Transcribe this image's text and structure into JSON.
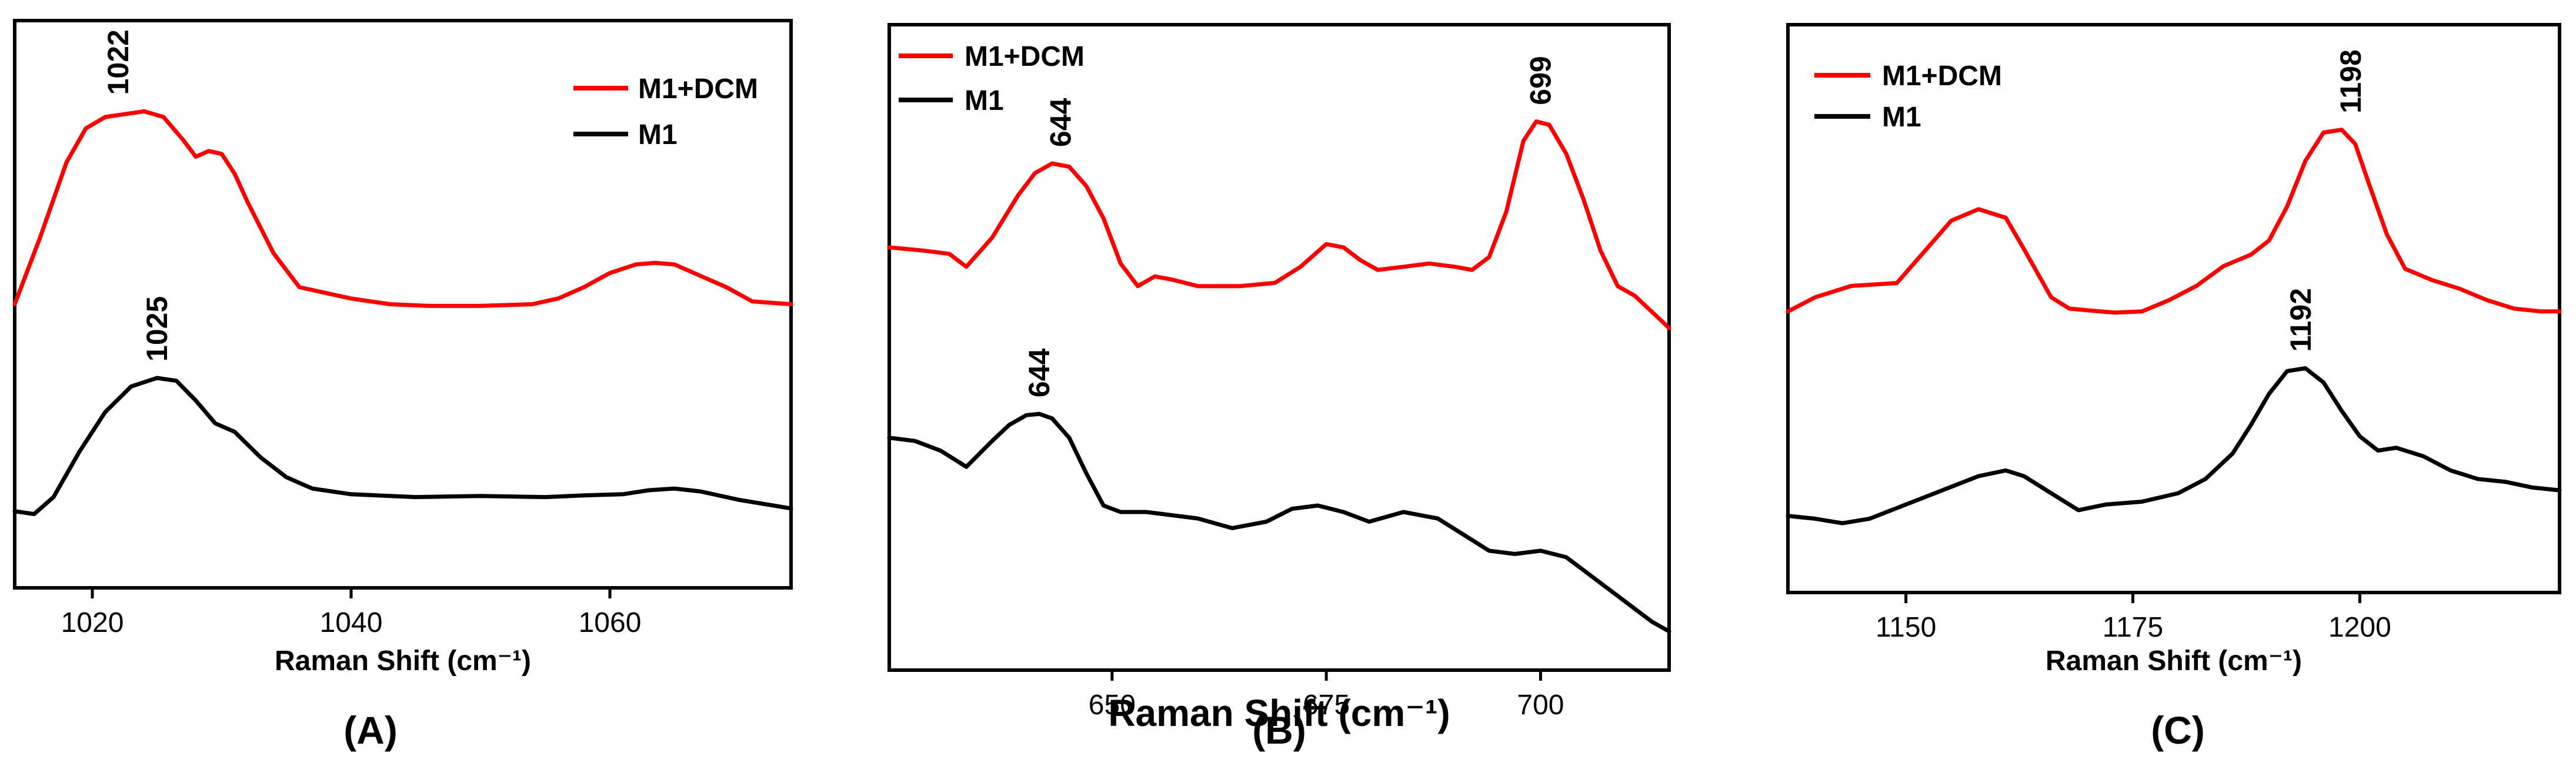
{
  "chart_data": [
    {
      "type": "line",
      "panel_label": "(A)",
      "xlabel": "Raman Shift (cm⁻¹)",
      "xlim": [
        1014,
        1074
      ],
      "ylim": [
        0,
        10
      ],
      "yticks_shown": false,
      "xticks": [
        1020,
        1040,
        1060
      ],
      "legend": {
        "placement": "top-right",
        "entries": [
          {
            "name": "M1+DCM",
            "color": "#ff0000"
          },
          {
            "name": "M1",
            "color": "#000000"
          }
        ]
      },
      "series": [
        {
          "name": "M1+DCM",
          "color": "#ff0000",
          "x": [
            1014,
            1016,
            1018,
            1019.5,
            1021,
            1022.5,
            1024,
            1025.5,
            1027,
            1028,
            1029,
            1030,
            1031,
            1032,
            1034,
            1036,
            1038,
            1040,
            1043,
            1046,
            1050,
            1054,
            1056,
            1058,
            1060,
            1062,
            1063.5,
            1065,
            1067,
            1069,
            1071,
            1074
          ],
          "y": [
            5.0,
            6.2,
            7.5,
            8.1,
            8.3,
            8.35,
            8.4,
            8.3,
            7.9,
            7.6,
            7.7,
            7.65,
            7.3,
            6.8,
            5.9,
            5.3,
            5.2,
            5.1,
            5.0,
            4.97,
            4.97,
            5.0,
            5.1,
            5.3,
            5.55,
            5.7,
            5.73,
            5.7,
            5.5,
            5.3,
            5.05,
            5.0
          ]
        },
        {
          "name": "M1",
          "color": "#000000",
          "x": [
            1014,
            1015.5,
            1017,
            1019,
            1021,
            1023,
            1025,
            1026.5,
            1028,
            1029.5,
            1031,
            1033,
            1035,
            1037,
            1040,
            1045,
            1050,
            1055,
            1058,
            1061,
            1063,
            1065,
            1067,
            1070,
            1074
          ],
          "y": [
            1.35,
            1.3,
            1.6,
            2.4,
            3.1,
            3.55,
            3.7,
            3.65,
            3.3,
            2.9,
            2.75,
            2.3,
            1.95,
            1.75,
            1.65,
            1.6,
            1.62,
            1.6,
            1.63,
            1.65,
            1.72,
            1.75,
            1.7,
            1.55,
            1.4
          ]
        }
      ],
      "annotations": [
        {
          "text": "1022",
          "x": 1022,
          "y": 8.4
        },
        {
          "text": "1025",
          "x": 1025,
          "y": 3.7
        }
      ]
    },
    {
      "type": "line",
      "panel_label": "(B)",
      "xlabel": "Raman Shift (cm⁻¹)",
      "xlim": [
        624,
        715
      ],
      "ylim": [
        0,
        10
      ],
      "yticks_shown": false,
      "xticks": [
        650,
        675,
        700
      ],
      "legend": {
        "placement": "top-left",
        "entries": [
          {
            "name": "M1+DCM",
            "color": "#ff0000"
          },
          {
            "name": "M1",
            "color": "#000000"
          }
        ]
      },
      "series": [
        {
          "name": "M1+DCM",
          "color": "#ff0000",
          "x": [
            624,
            628,
            631,
            633,
            636,
            639,
            641,
            643,
            645,
            647,
            649,
            651,
            653,
            655,
            657,
            660,
            665,
            669,
            672,
            675,
            677,
            679,
            681,
            684,
            687,
            690,
            692,
            694,
            696,
            698,
            699.5,
            701,
            703,
            705,
            707,
            709,
            711,
            713,
            715
          ],
          "y": [
            6.55,
            6.5,
            6.45,
            6.25,
            6.7,
            7.35,
            7.7,
            7.85,
            7.8,
            7.5,
            7.0,
            6.3,
            5.95,
            6.1,
            6.05,
            5.95,
            5.95,
            6.0,
            6.25,
            6.6,
            6.55,
            6.35,
            6.2,
            6.25,
            6.3,
            6.25,
            6.2,
            6.4,
            7.1,
            8.2,
            8.5,
            8.45,
            8.0,
            7.3,
            6.5,
            5.95,
            5.8,
            5.55,
            5.3
          ]
        },
        {
          "name": "M1",
          "color": "#000000",
          "x": [
            624,
            627,
            630,
            633,
            636,
            638,
            640,
            641.5,
            643,
            645,
            647,
            649,
            651,
            654,
            657,
            660,
            664,
            668,
            671,
            674,
            677,
            680,
            684,
            688,
            691,
            694,
            697,
            700,
            703,
            705,
            707,
            709,
            711,
            713,
            715
          ],
          "y": [
            3.6,
            3.55,
            3.4,
            3.15,
            3.55,
            3.8,
            3.95,
            3.97,
            3.9,
            3.6,
            3.05,
            2.55,
            2.45,
            2.45,
            2.4,
            2.35,
            2.2,
            2.3,
            2.5,
            2.55,
            2.45,
            2.3,
            2.45,
            2.35,
            2.1,
            1.85,
            1.8,
            1.85,
            1.75,
            1.55,
            1.35,
            1.15,
            0.95,
            0.75,
            0.6
          ]
        }
      ],
      "annotations": [
        {
          "text": "644",
          "x": 644,
          "y": 7.85
        },
        {
          "text": "699",
          "x": 700,
          "y": 8.5
        },
        {
          "text": "644",
          "x": 641.5,
          "y": 3.97
        }
      ]
    },
    {
      "type": "line",
      "panel_label": "(C)",
      "xlabel": "Raman Shift (cm⁻¹)",
      "xlim": [
        1137,
        1222
      ],
      "ylim": [
        0,
        10
      ],
      "yticks_shown": false,
      "xticks": [
        1150,
        1175,
        1200
      ],
      "legend": {
        "placement": "top-left",
        "entries": [
          {
            "name": "M1+DCM",
            "color": "#ff0000"
          },
          {
            "name": "M1",
            "color": "#000000"
          }
        ]
      },
      "series": [
        {
          "name": "M1+DCM",
          "color": "#ff0000",
          "x": [
            1137,
            1140,
            1144,
            1149,
            1152,
            1155,
            1158,
            1161,
            1163,
            1166,
            1168,
            1170,
            1173,
            1176,
            1179,
            1182,
            1185,
            1188,
            1190,
            1192,
            1194,
            1196,
            1198,
            1199.5,
            1201,
            1203,
            1205,
            1208,
            1211,
            1214,
            1217,
            1220,
            1222
          ],
          "y": [
            4.95,
            5.2,
            5.4,
            5.45,
            6.0,
            6.55,
            6.75,
            6.6,
            6.05,
            5.2,
            5.0,
            4.97,
            4.93,
            4.95,
            5.15,
            5.4,
            5.75,
            5.95,
            6.2,
            6.8,
            7.6,
            8.1,
            8.15,
            7.9,
            7.2,
            6.3,
            5.7,
            5.5,
            5.35,
            5.15,
            5.0,
            4.95,
            4.95
          ]
        },
        {
          "name": "M1",
          "color": "#000000",
          "x": [
            1137,
            1140,
            1143,
            1146,
            1150,
            1154,
            1158,
            1161,
            1163,
            1166,
            1169,
            1172,
            1176,
            1180,
            1183,
            1186,
            1188,
            1190,
            1192,
            1194,
            1196,
            1198,
            1200,
            1202,
            1204,
            1207,
            1210,
            1213,
            1216,
            1219,
            1222
          ],
          "y": [
            1.35,
            1.3,
            1.22,
            1.3,
            1.55,
            1.8,
            2.05,
            2.15,
            2.05,
            1.75,
            1.45,
            1.55,
            1.6,
            1.75,
            2.0,
            2.45,
            2.95,
            3.5,
            3.9,
            3.95,
            3.7,
            3.2,
            2.75,
            2.5,
            2.55,
            2.4,
            2.15,
            2.0,
            1.95,
            1.85,
            1.8
          ]
        }
      ],
      "annotations": [
        {
          "text": "1198",
          "x": 1199,
          "y": 8.15
        },
        {
          "text": "1192",
          "x": 1193.5,
          "y": 3.95
        }
      ]
    }
  ]
}
